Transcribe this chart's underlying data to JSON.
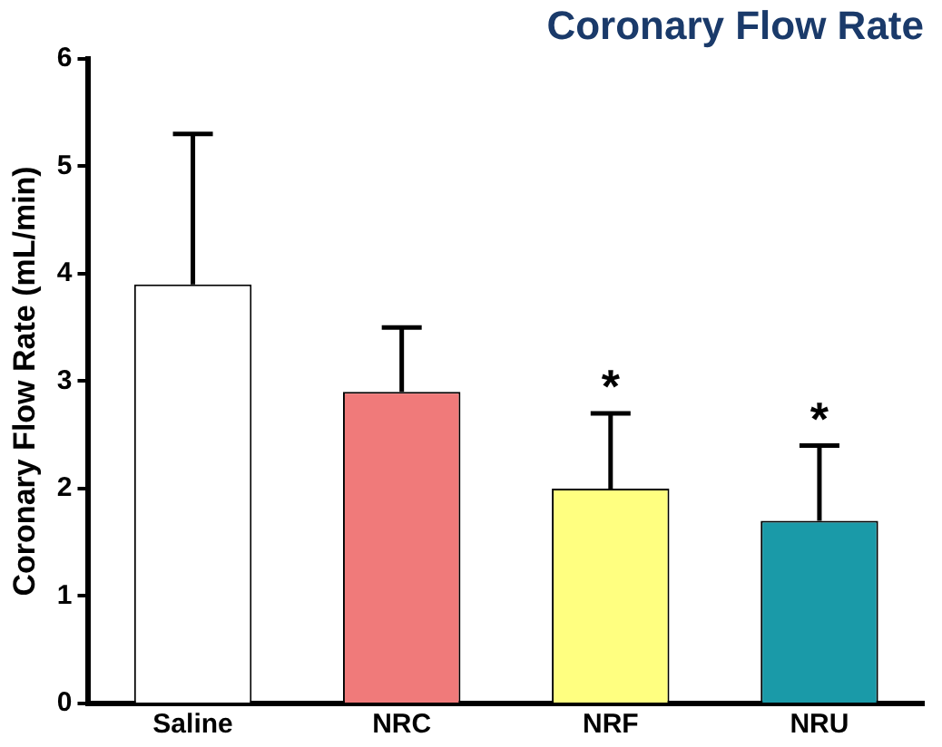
{
  "chart_data": {
    "type": "bar",
    "title": "Coronary Flow Rate",
    "ylabel": "Coronary Flow Rate (mL/min)",
    "categories": [
      "Saline",
      "NRC",
      "NRF",
      "NRU"
    ],
    "values": [
      3.9,
      2.9,
      2.0,
      1.7
    ],
    "colors": [
      "#ffffff",
      "#f07a7a",
      "#ffff80",
      "#1a9aa8"
    ],
    "errors": [
      [
        3.9,
        5.3
      ],
      [
        2.9,
        3.5
      ],
      [
        2.0,
        2.7
      ],
      [
        1.7,
        2.4
      ]
    ],
    "ylim": [
      0,
      6
    ],
    "yticks": [
      0,
      1,
      2,
      3,
      4,
      5,
      6
    ],
    "grid": false,
    "legend": false,
    "annotations": [
      {
        "text": "*",
        "x": "NRF",
        "y": 2.7
      },
      {
        "text": "*",
        "x": "NRU",
        "y": 2.4
      }
    ]
  }
}
